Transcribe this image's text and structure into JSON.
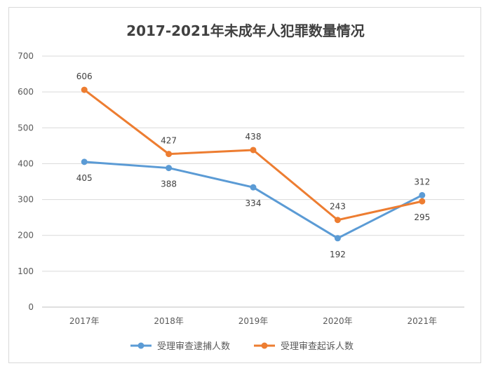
{
  "chart_data": {
    "type": "line",
    "title": "2017-2021年未成年人犯罪数量情况",
    "categories": [
      "2017年",
      "2018年",
      "2019年",
      "2020年",
      "2021年"
    ],
    "ylim": [
      0,
      700
    ],
    "yticks": [
      0,
      100,
      200,
      300,
      400,
      500,
      600,
      700
    ],
    "grid": true,
    "legend_position": "bottom",
    "series": [
      {
        "name": "受理审查逮捕人数",
        "color": "#5b9bd5",
        "values": [
          405,
          388,
          334,
          192,
          312
        ],
        "label_pos": [
          "below",
          "below",
          "below",
          "below",
          "above"
        ]
      },
      {
        "name": "受理审查起诉人数",
        "color": "#ed7d31",
        "values": [
          606,
          427,
          438,
          243,
          295
        ],
        "label_pos": [
          "above",
          "above",
          "above",
          "above",
          "below"
        ]
      }
    ]
  }
}
